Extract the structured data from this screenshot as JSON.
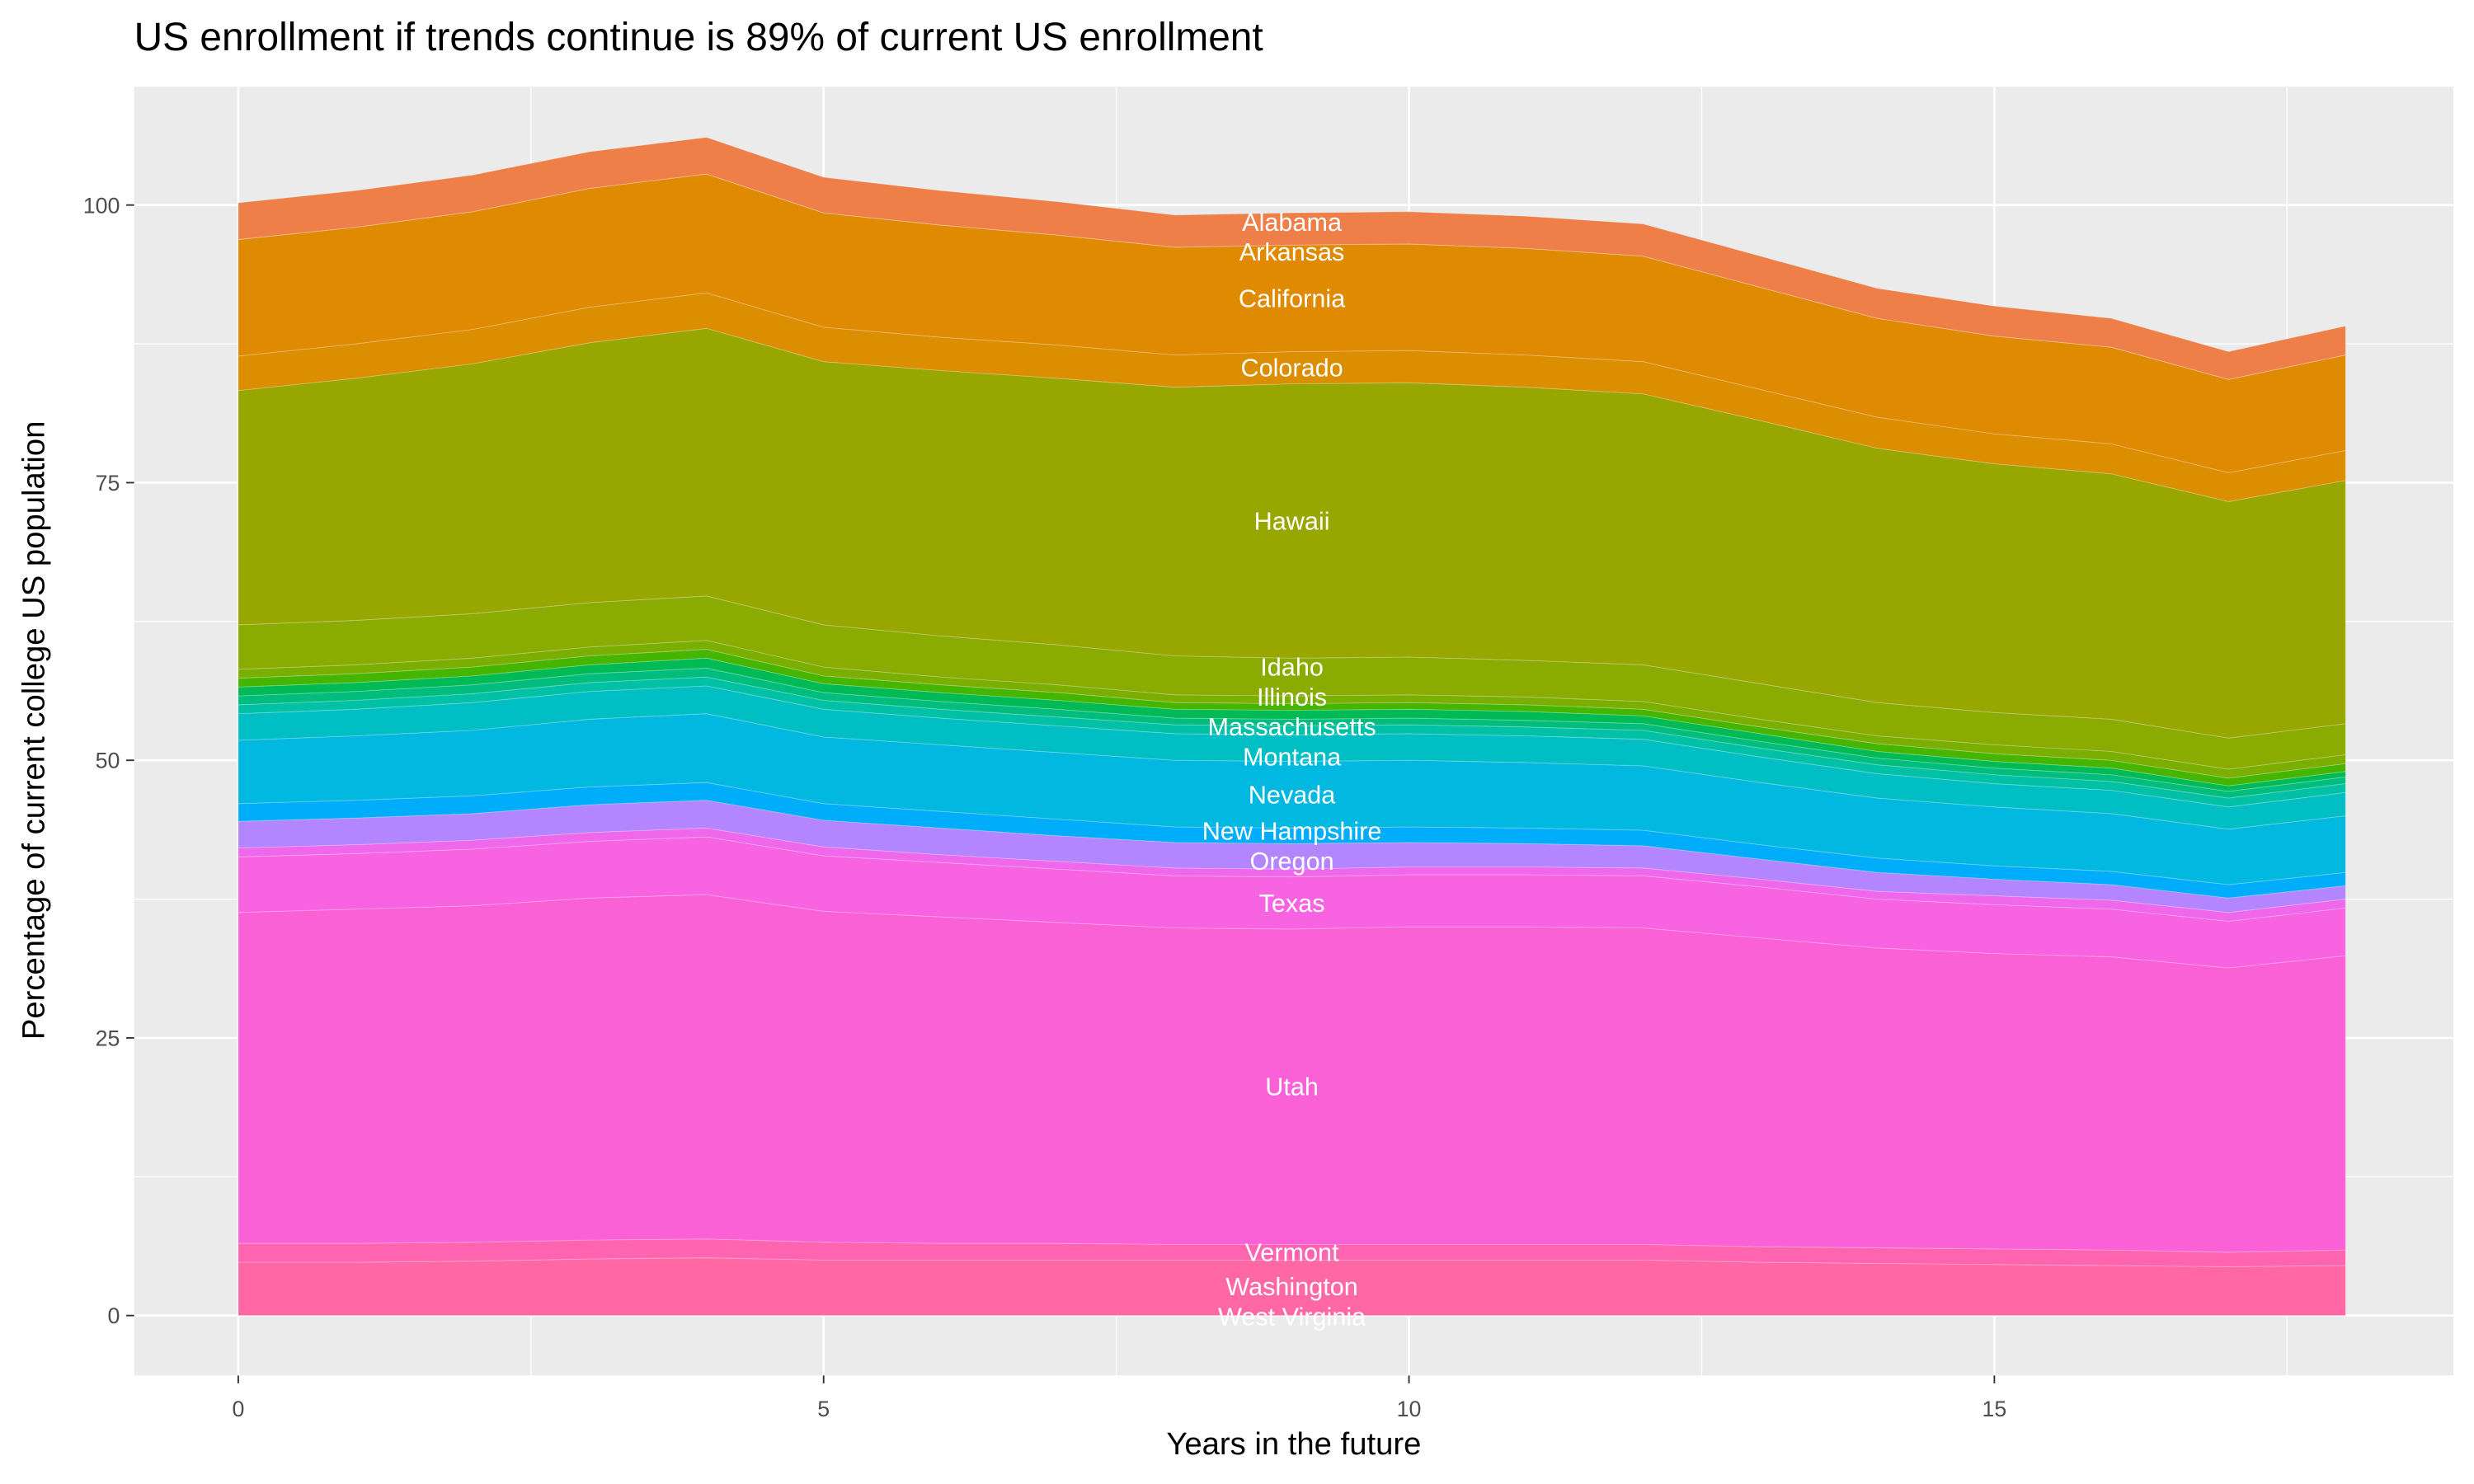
{
  "chart_data": {
    "type": "area",
    "stacked": true,
    "title": "US enrollment if trends continue is 89% of current US enrollment",
    "xlabel": "Years in the future",
    "ylabel": "Percentage of current college US population",
    "xlim": [
      0,
      18
    ],
    "ylim": [
      0,
      106
    ],
    "x_ticks": [
      "0",
      "5",
      "10",
      "15"
    ],
    "y_ticks": [
      "0",
      "25",
      "50",
      "75",
      "100"
    ],
    "grid": true,
    "legend": "none",
    "label_position_x": 9,
    "x": [
      0,
      1,
      2,
      3,
      4,
      5,
      6,
      7,
      8,
      9,
      10,
      11,
      12,
      13,
      14,
      15,
      16,
      17,
      18
    ],
    "series": [
      {
        "name": "Alabama",
        "color": "#EF7F48",
        "values": [
          3.3,
          3.3,
          3.3,
          3.3,
          3.3,
          3.2,
          3.1,
          3.0,
          2.9,
          2.9,
          2.9,
          2.9,
          2.9,
          2.8,
          2.7,
          2.7,
          2.6,
          2.5,
          2.6
        ]
      },
      {
        "name": "Arkansas",
        "color": "#E38900",
        "values": [
          0,
          0,
          0,
          0,
          0,
          0,
          0,
          0,
          0,
          0,
          0,
          0,
          0,
          0,
          0,
          0,
          0,
          0,
          0
        ]
      },
      {
        "name": "California",
        "color": "#DF8A00",
        "values": [
          10.5,
          10.5,
          10.6,
          10.7,
          10.7,
          10.3,
          10.1,
          9.9,
          9.7,
          9.6,
          9.6,
          9.6,
          9.5,
          9.2,
          8.9,
          8.8,
          8.7,
          8.4,
          8.6
        ]
      },
      {
        "name": "Colorado",
        "color": "#DB8E00",
        "values": [
          3.1,
          3.1,
          3.1,
          3.2,
          3.2,
          3.1,
          3.0,
          3.0,
          2.9,
          2.9,
          2.9,
          2.9,
          2.9,
          2.8,
          2.8,
          2.7,
          2.7,
          2.6,
          2.7
        ]
      },
      {
        "name": "Hawaii",
        "color": "#98A600",
        "values": [
          21.1,
          21.8,
          22.5,
          23.4,
          24.1,
          23.7,
          23.9,
          24.0,
          24.2,
          24.7,
          24.7,
          24.6,
          24.4,
          23.7,
          22.9,
          22.4,
          22.1,
          21.3,
          21.9
        ]
      },
      {
        "name": "Idaho",
        "color": "#8AAB00",
        "values": [
          4.0,
          4.0,
          4.0,
          4.0,
          4.0,
          3.8,
          3.7,
          3.6,
          3.5,
          3.4,
          3.4,
          3.3,
          3.3,
          3.2,
          3.0,
          2.9,
          2.9,
          2.8,
          2.8
        ]
      },
      {
        "name": "Illinois",
        "color": "#7AAE00",
        "values": [
          0.8,
          0.8,
          0.8,
          0.8,
          0.8,
          0.8,
          0.7,
          0.7,
          0.7,
          0.7,
          0.7,
          0.7,
          0.7,
          0.7,
          0.7,
          0.8,
          0.8,
          0.8,
          0.8
        ]
      },
      {
        "color": "#45B500",
        "values": [
          0.8,
          0.8,
          0.8,
          0.8,
          0.8,
          0.7,
          0.7,
          0.7,
          0.6,
          0.6,
          0.6,
          0.6,
          0.6,
          0.6,
          0.7,
          0.7,
          0.7,
          0.7,
          0.7
        ]
      },
      {
        "color": "#00BA55",
        "values": [
          0.8,
          0.8,
          0.8,
          0.8,
          0.9,
          0.8,
          0.8,
          0.8,
          0.8,
          0.8,
          0.8,
          0.8,
          0.7,
          0.7,
          0.6,
          0.6,
          0.6,
          0.5,
          0.5
        ]
      },
      {
        "name": "Massachusetts",
        "color": "#00BD7D",
        "values": [
          0.8,
          0.8,
          0.8,
          0.8,
          0.8,
          0.7,
          0.7,
          0.7,
          0.6,
          0.6,
          0.6,
          0.6,
          0.6,
          0.6,
          0.6,
          0.6,
          0.6,
          0.6,
          0.6
        ]
      },
      {
        "color": "#00C0A6",
        "values": [
          0.8,
          0.8,
          0.8,
          0.8,
          0.8,
          0.8,
          0.8,
          0.8,
          0.8,
          0.8,
          0.8,
          0.8,
          0.8,
          0.8,
          0.8,
          0.8,
          0.8,
          0.8,
          0.8
        ]
      },
      {
        "name": "Montana",
        "color": "#00BFC4",
        "values": [
          2.4,
          2.4,
          2.5,
          2.5,
          2.5,
          2.5,
          2.4,
          2.4,
          2.4,
          2.4,
          2.4,
          2.4,
          2.4,
          2.3,
          2.2,
          2.1,
          2.1,
          2.0,
          2.1
        ]
      },
      {
        "name": "Nevada",
        "color": "#00B8E0",
        "values": [
          5.7,
          5.8,
          5.9,
          6.1,
          6.2,
          6.0,
          6.0,
          6.0,
          6.0,
          6.0,
          6.0,
          5.9,
          5.8,
          5.6,
          5.4,
          5.3,
          5.2,
          5.0,
          5.1
        ]
      },
      {
        "name": "New Hampshire",
        "color": "#00ADFA",
        "values": [
          1.6,
          1.6,
          1.6,
          1.6,
          1.6,
          1.5,
          1.5,
          1.5,
          1.4,
          1.4,
          1.4,
          1.4,
          1.4,
          1.3,
          1.3,
          1.2,
          1.2,
          1.2,
          1.2
        ]
      },
      {
        "name": "Oregon",
        "color": "#B385FF",
        "values": [
          2.4,
          2.4,
          2.4,
          2.5,
          2.5,
          2.4,
          2.4,
          2.3,
          2.3,
          2.3,
          2.2,
          2.1,
          2.0,
          1.8,
          1.7,
          1.5,
          1.4,
          1.3,
          1.2
        ]
      },
      {
        "color": "#EF67EB",
        "values": [
          0.8,
          0.8,
          0.8,
          0.8,
          0.8,
          0.8,
          0.7,
          0.7,
          0.7,
          0.7,
          0.7,
          0.7,
          0.7,
          0.7,
          0.7,
          0.8,
          0.8,
          0.8,
          0.8
        ]
      },
      {
        "name": "Texas",
        "color": "#F763E0",
        "values": [
          5.0,
          5.0,
          5.1,
          5.1,
          5.2,
          5.0,
          4.9,
          4.8,
          4.7,
          4.7,
          4.7,
          4.7,
          4.7,
          4.6,
          4.4,
          4.4,
          4.3,
          4.2,
          4.3
        ]
      },
      {
        "name": "Utah",
        "color": "#FB61D7",
        "values": [
          29.8,
          30.1,
          30.3,
          30.8,
          31.0,
          29.8,
          29.4,
          28.9,
          28.5,
          28.4,
          28.6,
          28.6,
          28.5,
          27.8,
          27.0,
          26.6,
          26.4,
          25.6,
          26.5
        ]
      },
      {
        "name": "Vermont",
        "color": "#FF64B0",
        "values": [
          1.7,
          1.7,
          1.7,
          1.7,
          1.7,
          1.6,
          1.5,
          1.5,
          1.4,
          1.4,
          1.4,
          1.4,
          1.4,
          1.4,
          1.4,
          1.4,
          1.4,
          1.3,
          1.4
        ]
      },
      {
        "name": "Washington",
        "color": "#FF68A5",
        "values": [
          4.8,
          4.8,
          4.9,
          5.1,
          5.2,
          5.0,
          5.0,
          5.0,
          5.0,
          5.0,
          5.0,
          5.0,
          5.0,
          4.8,
          4.7,
          4.6,
          4.5,
          4.4,
          4.5
        ]
      },
      {
        "name": "West Virginia",
        "color": "#FF6C90",
        "values": [
          0,
          0,
          0,
          0,
          0,
          0,
          0,
          0,
          0,
          0,
          0,
          0,
          0,
          0,
          0,
          0,
          0,
          0,
          0
        ]
      }
    ]
  }
}
